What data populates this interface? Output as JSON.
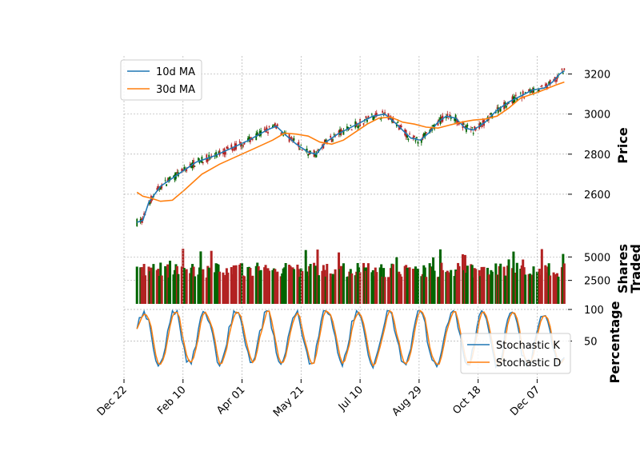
{
  "chart_data": [
    {
      "type": "candlestick",
      "panel": "price",
      "ylabel": "Price",
      "ylim": [
        2420,
        3290
      ],
      "yticks": [
        2600,
        2800,
        3000,
        3200
      ],
      "grid": true,
      "legend": {
        "placement": "top-left",
        "entries": [
          "10d MA",
          "30d MA"
        ]
      },
      "series": [
        {
          "name": "10d MA",
          "color": "#1f77b4",
          "points": [
            [
              0,
              2460
            ],
            [
              5,
              2470
            ],
            [
              10,
              2560
            ],
            [
              20,
              2640
            ],
            [
              35,
              2700
            ],
            [
              50,
              2760
            ],
            [
              65,
              2790
            ],
            [
              80,
              2830
            ],
            [
              95,
              2870
            ],
            [
              110,
              2920
            ],
            [
              118,
              2940
            ],
            [
              125,
              2900
            ],
            [
              135,
              2850
            ],
            [
              145,
              2810
            ],
            [
              152,
              2800
            ],
            [
              160,
              2860
            ],
            [
              170,
              2900
            ],
            [
              180,
              2930
            ],
            [
              190,
              2960
            ],
            [
              200,
              2990
            ],
            [
              210,
              3000
            ],
            [
              218,
              2960
            ],
            [
              225,
              2920
            ],
            [
              232,
              2880
            ],
            [
              240,
              2870
            ],
            [
              248,
              2910
            ],
            [
              255,
              2960
            ],
            [
              262,
              2990
            ],
            [
              270,
              2980
            ],
            [
              278,
              2930
            ],
            [
              285,
              2920
            ],
            [
              295,
              2960
            ],
            [
              305,
              3020
            ],
            [
              315,
              3060
            ],
            [
              325,
              3090
            ],
            [
              335,
              3120
            ],
            [
              345,
              3130
            ],
            [
              352,
              3160
            ],
            [
              358,
              3200
            ],
            [
              362,
              3215
            ]
          ]
        },
        {
          "name": "30d MA",
          "color": "#ff7f0e",
          "points": [
            [
              0,
              2610
            ],
            [
              5,
              2590
            ],
            [
              12,
              2580
            ],
            [
              20,
              2565
            ],
            [
              30,
              2570
            ],
            [
              40,
              2620
            ],
            [
              55,
              2700
            ],
            [
              70,
              2750
            ],
            [
              85,
              2790
            ],
            [
              100,
              2830
            ],
            [
              115,
              2870
            ],
            [
              125,
              2905
            ],
            [
              135,
              2900
            ],
            [
              145,
              2890
            ],
            [
              155,
              2860
            ],
            [
              165,
              2850
            ],
            [
              175,
              2870
            ],
            [
              185,
              2910
            ],
            [
              195,
              2950
            ],
            [
              205,
              2980
            ],
            [
              215,
              2985
            ],
            [
              225,
              2960
            ],
            [
              235,
              2950
            ],
            [
              245,
              2935
            ],
            [
              255,
              2930
            ],
            [
              265,
              2945
            ],
            [
              275,
              2960
            ],
            [
              285,
              2970
            ],
            [
              295,
              2975
            ],
            [
              305,
              2990
            ],
            [
              315,
              3030
            ],
            [
              325,
              3080
            ],
            [
              340,
              3110
            ],
            [
              355,
              3145
            ],
            [
              362,
              3160
            ]
          ]
        }
      ]
    },
    {
      "type": "bar",
      "panel": "volume",
      "ylabel": "Shares\nTraded",
      "ylim": [
        0,
        7500
      ],
      "yticks": [
        2500,
        5000
      ],
      "colors": {
        "up": "#006400",
        "down": "#b22222"
      }
    },
    {
      "type": "line",
      "panel": "stochastic",
      "ylabel": "Percentage",
      "ylim": [
        0,
        100
      ],
      "yticks": [
        50,
        100
      ],
      "legend": {
        "placement": "bottom-right",
        "entries": [
          "Stochastic K",
          "Stochastic D"
        ]
      },
      "series": [
        {
          "name": "Stochastic K",
          "color": "#1f77b4"
        },
        {
          "name": "Stochastic D",
          "color": "#ff7f0e"
        }
      ]
    }
  ],
  "xaxis": {
    "domain": [
      "2022-12-22",
      "2023-12-31"
    ],
    "tick_labels": [
      "Dec 22",
      "Feb 10",
      "Apr 01",
      "May 21",
      "Jul 10",
      "Aug 29",
      "Oct 18",
      "Dec 07"
    ],
    "tick_days": [
      0,
      50,
      100,
      150,
      200,
      250,
      300,
      350
    ],
    "data_start_day": 11,
    "data_end_day": 373
  },
  "colors": {
    "up": "#006400",
    "down": "#b22222",
    "grid": "#b0b0b0"
  }
}
